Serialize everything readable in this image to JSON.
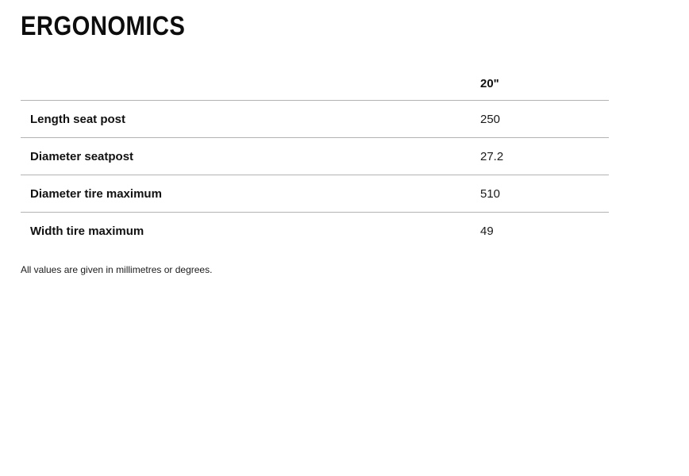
{
  "page": {
    "title": "ERGONOMICS",
    "footnote": "All values are given in millimetres or degrees."
  },
  "table": {
    "column_header": "20\"",
    "rows": [
      {
        "label": "Length seat post",
        "value": "250"
      },
      {
        "label": "Diameter seatpost",
        "value": "27.2"
      },
      {
        "label": "Diameter tire maximum",
        "value": "510"
      },
      {
        "label": "Width tire maximum",
        "value": "49"
      }
    ]
  },
  "colors": {
    "text": "#111111",
    "divider": "#b3b3b3",
    "background": "#ffffff"
  }
}
